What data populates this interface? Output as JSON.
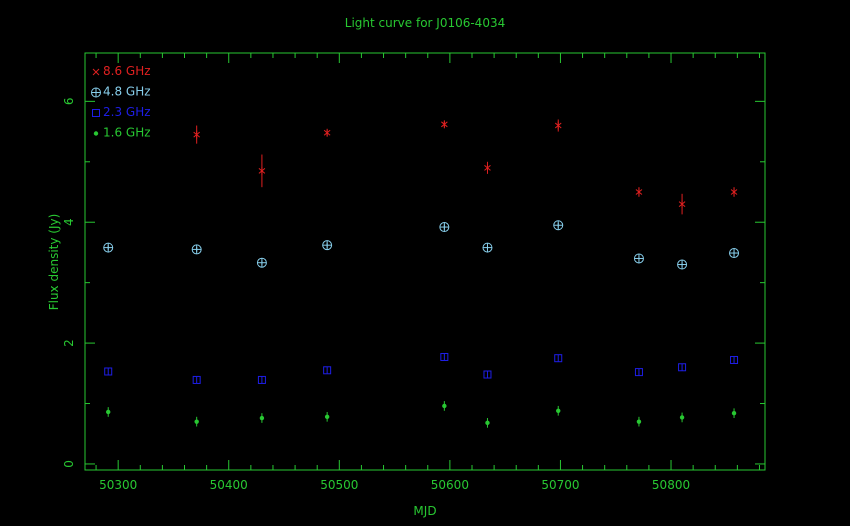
{
  "chart_data": {
    "type": "scatter",
    "title": "Light curve for J0106-4034",
    "xlabel": "MJD",
    "ylabel": "Flux density (Jy)",
    "xlim": [
      50270,
      50885
    ],
    "ylim": [
      -0.1,
      6.8
    ],
    "x_ticks": [
      50300,
      50400,
      50500,
      50600,
      50700,
      50800
    ],
    "y_ticks": [
      0,
      2,
      4,
      6
    ],
    "axis_color": "#28c832",
    "legend_position": "top-left",
    "series": [
      {
        "name": "8.6 GHz",
        "color": "#e02020",
        "marker": "star",
        "points": [
          {
            "x": 50371,
            "y": 5.45,
            "err": 0.15
          },
          {
            "x": 50430,
            "y": 4.85,
            "err": 0.27
          },
          {
            "x": 50489,
            "y": 5.48,
            "err": 0.05
          },
          {
            "x": 50595,
            "y": 5.62,
            "err": 0.05
          },
          {
            "x": 50634,
            "y": 4.9,
            "err": 0.1
          },
          {
            "x": 50698,
            "y": 5.6,
            "err": 0.1
          },
          {
            "x": 50771,
            "y": 4.5,
            "err": 0.08
          },
          {
            "x": 50810,
            "y": 4.3,
            "err": 0.17
          },
          {
            "x": 50857,
            "y": 4.5,
            "err": 0.08
          }
        ]
      },
      {
        "name": "4.8 GHz",
        "color": "#87ceeb",
        "marker": "circle-plus",
        "points": [
          {
            "x": 50291,
            "y": 3.58,
            "err": 0.04
          },
          {
            "x": 50371,
            "y": 3.55,
            "err": 0.04
          },
          {
            "x": 50430,
            "y": 3.33,
            "err": 0.04
          },
          {
            "x": 50489,
            "y": 3.62,
            "err": 0.04
          },
          {
            "x": 50595,
            "y": 3.92,
            "err": 0.04
          },
          {
            "x": 50634,
            "y": 3.58,
            "err": 0.04
          },
          {
            "x": 50698,
            "y": 3.95,
            "err": 0.04
          },
          {
            "x": 50771,
            "y": 3.4,
            "err": 0.04
          },
          {
            "x": 50810,
            "y": 3.3,
            "err": 0.04
          },
          {
            "x": 50857,
            "y": 3.49,
            "err": 0.04
          }
        ]
      },
      {
        "name": "2.3 GHz",
        "color": "#1e1ee6",
        "marker": "square",
        "points": [
          {
            "x": 50291,
            "y": 1.53,
            "err": 0.06
          },
          {
            "x": 50371,
            "y": 1.39,
            "err": 0.06
          },
          {
            "x": 50430,
            "y": 1.39,
            "err": 0.06
          },
          {
            "x": 50489,
            "y": 1.55,
            "err": 0.06
          },
          {
            "x": 50595,
            "y": 1.77,
            "err": 0.06
          },
          {
            "x": 50634,
            "y": 1.48,
            "err": 0.06
          },
          {
            "x": 50698,
            "y": 1.75,
            "err": 0.06
          },
          {
            "x": 50771,
            "y": 1.52,
            "err": 0.06
          },
          {
            "x": 50810,
            "y": 1.6,
            "err": 0.06
          },
          {
            "x": 50857,
            "y": 1.72,
            "err": 0.06
          }
        ]
      },
      {
        "name": "1.6 GHz",
        "color": "#28c832",
        "marker": "dot",
        "points": [
          {
            "x": 50291,
            "y": 0.86,
            "err": 0.08
          },
          {
            "x": 50371,
            "y": 0.7,
            "err": 0.08
          },
          {
            "x": 50430,
            "y": 0.76,
            "err": 0.08
          },
          {
            "x": 50489,
            "y": 0.78,
            "err": 0.08
          },
          {
            "x": 50595,
            "y": 0.96,
            "err": 0.08
          },
          {
            "x": 50634,
            "y": 0.68,
            "err": 0.08
          },
          {
            "x": 50698,
            "y": 0.88,
            "err": 0.08
          },
          {
            "x": 50771,
            "y": 0.7,
            "err": 0.08
          },
          {
            "x": 50810,
            "y": 0.77,
            "err": 0.08
          },
          {
            "x": 50857,
            "y": 0.84,
            "err": 0.08
          }
        ]
      }
    ]
  }
}
